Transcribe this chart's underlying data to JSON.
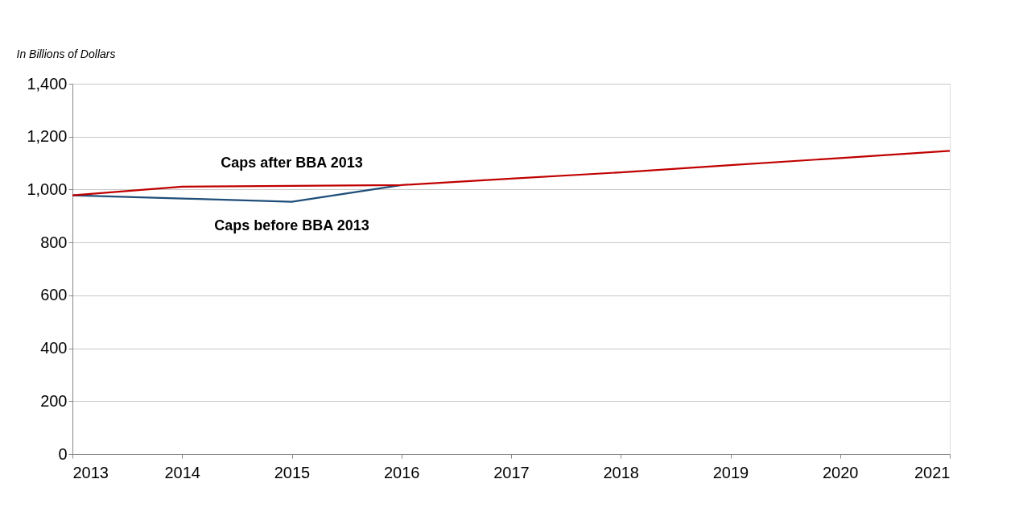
{
  "chart_data": {
    "type": "line",
    "ylabel": "In Billions of Dollars",
    "x": [
      2013,
      2014,
      2015,
      2016,
      2017,
      2018,
      2019,
      2020,
      2021
    ],
    "series": [
      {
        "name": "Caps before BBA 2013",
        "color": "#1f4e79",
        "values": [
          978,
          966,
          954,
          1017,
          null,
          null,
          null,
          null,
          null
        ]
      },
      {
        "name": "Caps after BBA 2013",
        "color": "#c00000",
        "values": [
          978,
          1011,
          1014,
          1017,
          1041,
          1065,
          1092,
          1119,
          1146
        ]
      }
    ],
    "xlim": [
      2013,
      2021
    ],
    "xticks": [
      2013,
      2014,
      2015,
      2016,
      2017,
      2018,
      2019,
      2020,
      2021
    ],
    "ylim": [
      0,
      1400
    ],
    "yticks": [
      0,
      200,
      400,
      600,
      800,
      {
        "value": 1000,
        "label": "1,000"
      },
      {
        "value": 1200,
        "label": "1,200"
      },
      {
        "value": 1400,
        "label": "1,400"
      }
    ],
    "grid": "y",
    "legend": false,
    "marker": "none",
    "line_style": "solid"
  }
}
